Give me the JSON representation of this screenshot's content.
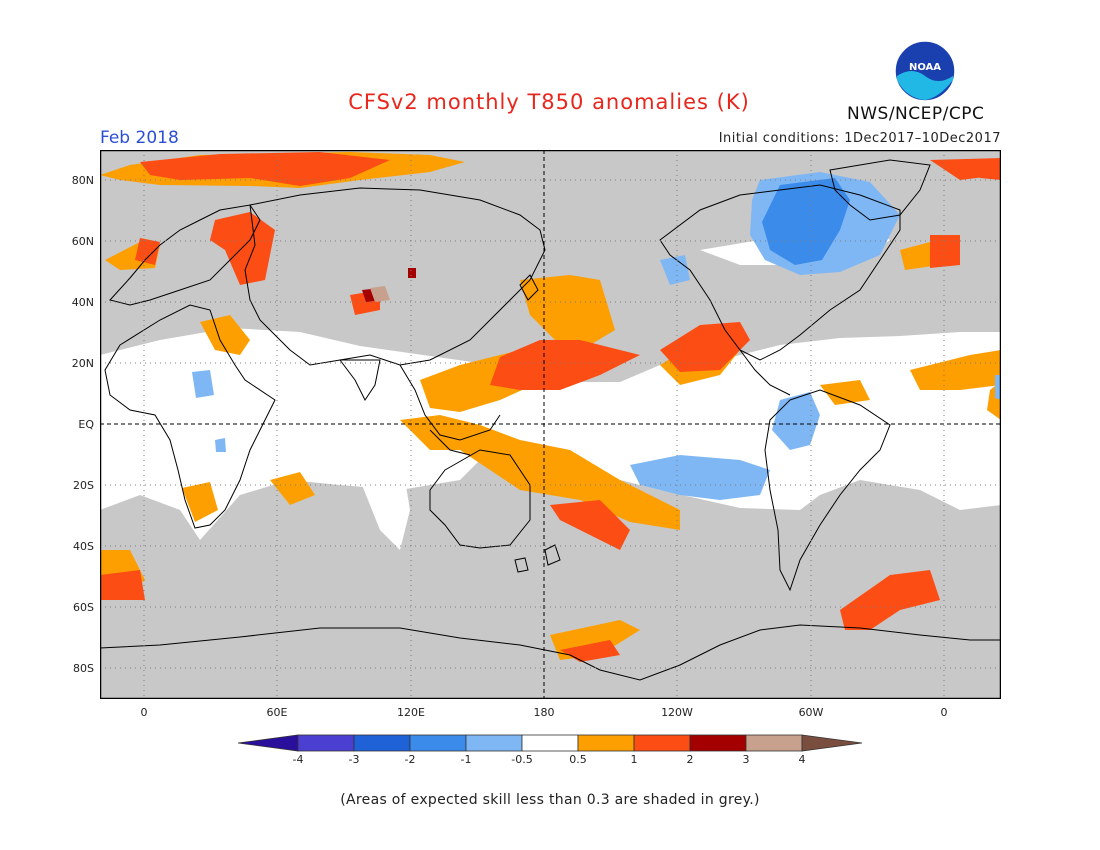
{
  "title": "CFSv2 monthly T850 anomalies (K)",
  "month": "Feb 2018",
  "agency": "NWS/NCEP/CPC",
  "initial_conditions": "Initial conditions: 1Dec2017–10Dec2017",
  "logo": {
    "icon": "noaa-logo-icon",
    "text": "NOAA"
  },
  "lat_labels": [
    "80N",
    "60N",
    "40N",
    "20N",
    "EQ",
    "20S",
    "40S",
    "60S",
    "80S"
  ],
  "lon_labels": [
    "0",
    "60E",
    "120E",
    "180",
    "120W",
    "60W",
    "0"
  ],
  "colorbar": {
    "labels": [
      "-4",
      "-3",
      "-2",
      "-1",
      "-0.5",
      "0.5",
      "1",
      "2",
      "3",
      "4"
    ],
    "colors": [
      "#2a0f9c",
      "#4a3fd0",
      "#1f62d8",
      "#3b8cea",
      "#7fb7f5",
      "#ffffff",
      "#fd9f00",
      "#fb4d14",
      "#a40000",
      "#c8a08e",
      "#7a4e3e"
    ]
  },
  "footnote": "(Areas of expected skill less than 0.3 are shaded in grey.)",
  "colors": {
    "skill_grey": "#c8c8c8",
    "title_red": "#e8261c",
    "month_blue": "#2b4fd6"
  }
}
